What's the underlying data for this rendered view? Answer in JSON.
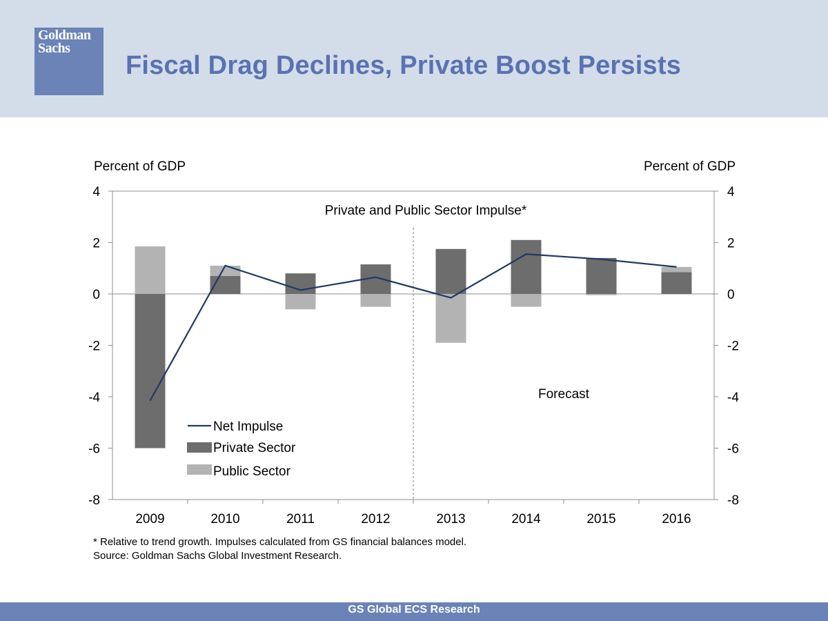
{
  "header": {
    "logo_line1": "Goldman",
    "logo_line2": "Sachs",
    "title": "Fiscal Drag Declines, Private Boost Persists"
  },
  "colors": {
    "header_bg": "#d3dce9",
    "accent": "#6b83b6",
    "title": "#5a72b2",
    "private": "#6d6d6d",
    "public": "#b3b3b3",
    "net_line": "#1f3864"
  },
  "chart_data": {
    "type": "bar",
    "title": "Private and Public Sector Impulse*",
    "ylabel_left": "Percent of GDP",
    "ylabel_right": "Percent of GDP",
    "ylim": [
      -8,
      4
    ],
    "yticks": [
      -8,
      -6,
      -4,
      -2,
      0,
      2,
      4
    ],
    "categories": [
      "2009",
      "2010",
      "2011",
      "2012",
      "2013",
      "2014",
      "2015",
      "2016"
    ],
    "series": [
      {
        "name": "Private Sector",
        "values": [
          -6.0,
          0.7,
          0.8,
          1.15,
          1.75,
          2.1,
          1.4,
          0.85
        ]
      },
      {
        "name": "Public Sector",
        "values": [
          1.85,
          0.4,
          -0.6,
          -0.5,
          -1.9,
          -0.5,
          -0.05,
          0.2
        ]
      },
      {
        "name": "Net Impulse",
        "type": "line",
        "values": [
          -4.15,
          1.1,
          0.15,
          0.65,
          -0.15,
          1.55,
          1.35,
          1.05
        ]
      }
    ],
    "forecast_label": "Forecast",
    "forecast_after": "2012",
    "legend": [
      "Net Impulse",
      "Private Sector",
      "Public Sector"
    ]
  },
  "footnote": {
    "line1": "* Relative to trend growth.  Impulses calculated from GS financial balances model.",
    "line2": "Source: Goldman Sachs Global Investment Research."
  },
  "footer": {
    "text": "GS Global ECS Research"
  }
}
